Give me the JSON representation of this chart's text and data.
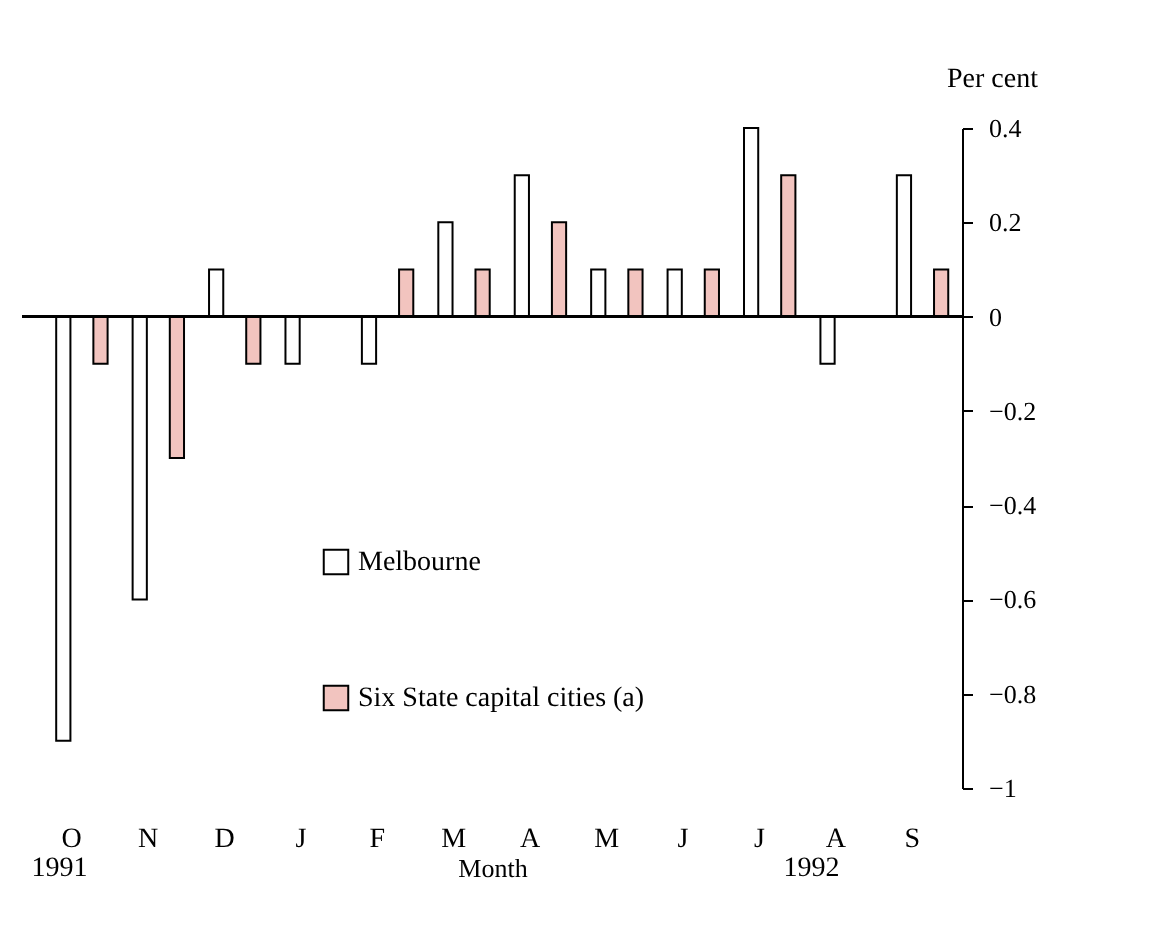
{
  "chart_data": {
    "type": "bar",
    "xlabel": "Month",
    "ylabel": "Per cent",
    "categories": [
      "O",
      "N",
      "D",
      "J",
      "F",
      "M",
      "A",
      "M",
      "J",
      "J",
      "A",
      "S"
    ],
    "series": [
      {
        "name": "Melbourne",
        "color": "#ffffff",
        "values": [
          -0.9,
          -0.6,
          0.1,
          -0.1,
          -0.1,
          0.2,
          0.3,
          0.1,
          0.1,
          0.4,
          -0.1,
          0.3
        ]
      },
      {
        "name": "Six State capital cities (a)",
        "color": "#f2c4bf",
        "values": [
          -0.1,
          -0.3,
          -0.1,
          null,
          0.1,
          0.1,
          0.2,
          0.1,
          0.1,
          0.3,
          null,
          0.1
        ]
      }
    ],
    "ylim": [
      -1,
      0.4
    ],
    "yticks": [
      -1,
      -0.8,
      -0.6,
      -0.4,
      -0.2,
      0,
      0.2,
      0.4
    ],
    "ref_lines": [
      {
        "axis": "y",
        "value": 0
      }
    ],
    "annotations": [
      "1991",
      "1992"
    ],
    "legend": "center",
    "grid": false
  }
}
